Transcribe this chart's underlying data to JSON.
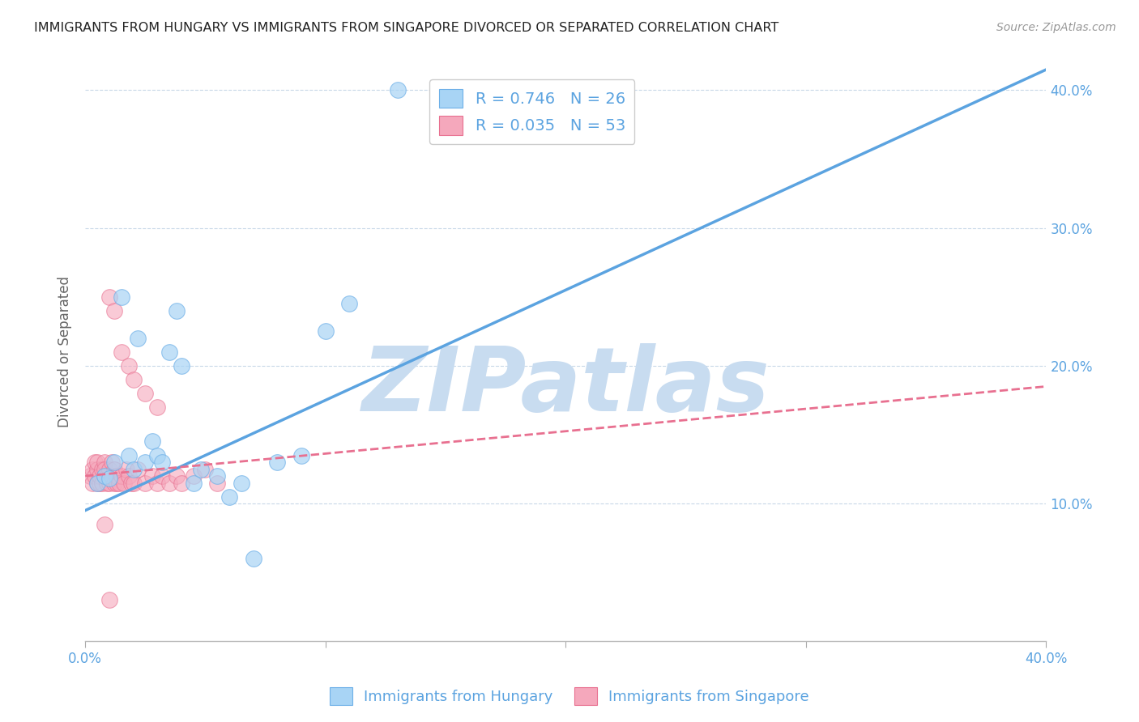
{
  "title": "IMMIGRANTS FROM HUNGARY VS IMMIGRANTS FROM SINGAPORE DIVORCED OR SEPARATED CORRELATION CHART",
  "source": "Source: ZipAtlas.com",
  "ylabel": "Divorced or Separated",
  "xlim": [
    0.0,
    0.4
  ],
  "ylim": [
    0.0,
    0.42
  ],
  "xticks": [
    0.0,
    0.1,
    0.2,
    0.3,
    0.4
  ],
  "yticks": [
    0.1,
    0.2,
    0.3,
    0.4
  ],
  "ytick_labels": [
    "10.0%",
    "20.0%",
    "30.0%",
    "40.0%"
  ],
  "xtick_labels_bottom": [
    "0.0%",
    "",
    "",
    "",
    "40.0%"
  ],
  "hungary_color": "#A8D4F5",
  "singapore_color": "#F5A8BC",
  "hungary_edge_color": "#6EB0E8",
  "singapore_edge_color": "#E87090",
  "hungary_line_color": "#5BA3E0",
  "singapore_line_color": "#E87090",
  "text_color": "#5BA3E0",
  "watermark_color": "#C8DCF0",
  "R_hungary": 0.746,
  "N_hungary": 26,
  "R_singapore": 0.035,
  "N_singapore": 53,
  "watermark": "ZIPatlas",
  "hungary_x": [
    0.005,
    0.008,
    0.01,
    0.012,
    0.015,
    0.018,
    0.02,
    0.022,
    0.025,
    0.028,
    0.03,
    0.032,
    0.035,
    0.038,
    0.04,
    0.045,
    0.048,
    0.055,
    0.06,
    0.065,
    0.07,
    0.08,
    0.09,
    0.1,
    0.11,
    0.13
  ],
  "hungary_y": [
    0.115,
    0.12,
    0.118,
    0.13,
    0.25,
    0.135,
    0.125,
    0.22,
    0.13,
    0.145,
    0.135,
    0.13,
    0.21,
    0.24,
    0.2,
    0.115,
    0.125,
    0.12,
    0.105,
    0.115,
    0.06,
    0.13,
    0.135,
    0.225,
    0.245,
    0.4
  ],
  "singapore_x": [
    0.002,
    0.003,
    0.003,
    0.004,
    0.004,
    0.005,
    0.005,
    0.005,
    0.006,
    0.006,
    0.007,
    0.007,
    0.008,
    0.008,
    0.008,
    0.009,
    0.009,
    0.01,
    0.01,
    0.01,
    0.011,
    0.011,
    0.012,
    0.012,
    0.013,
    0.013,
    0.014,
    0.015,
    0.016,
    0.017,
    0.018,
    0.019,
    0.02,
    0.022,
    0.025,
    0.028,
    0.03,
    0.032,
    0.035,
    0.038,
    0.04,
    0.045,
    0.05,
    0.055,
    0.01,
    0.012,
    0.015,
    0.018,
    0.02,
    0.025,
    0.03,
    0.008,
    0.01
  ],
  "singapore_y": [
    0.12,
    0.125,
    0.115,
    0.12,
    0.13,
    0.115,
    0.125,
    0.13,
    0.115,
    0.12,
    0.115,
    0.125,
    0.12,
    0.13,
    0.125,
    0.115,
    0.12,
    0.115,
    0.12,
    0.125,
    0.12,
    0.13,
    0.115,
    0.125,
    0.115,
    0.12,
    0.115,
    0.12,
    0.115,
    0.125,
    0.12,
    0.115,
    0.115,
    0.125,
    0.115,
    0.12,
    0.115,
    0.12,
    0.115,
    0.12,
    0.115,
    0.12,
    0.125,
    0.115,
    0.25,
    0.24,
    0.21,
    0.2,
    0.19,
    0.18,
    0.17,
    0.085,
    0.03
  ]
}
